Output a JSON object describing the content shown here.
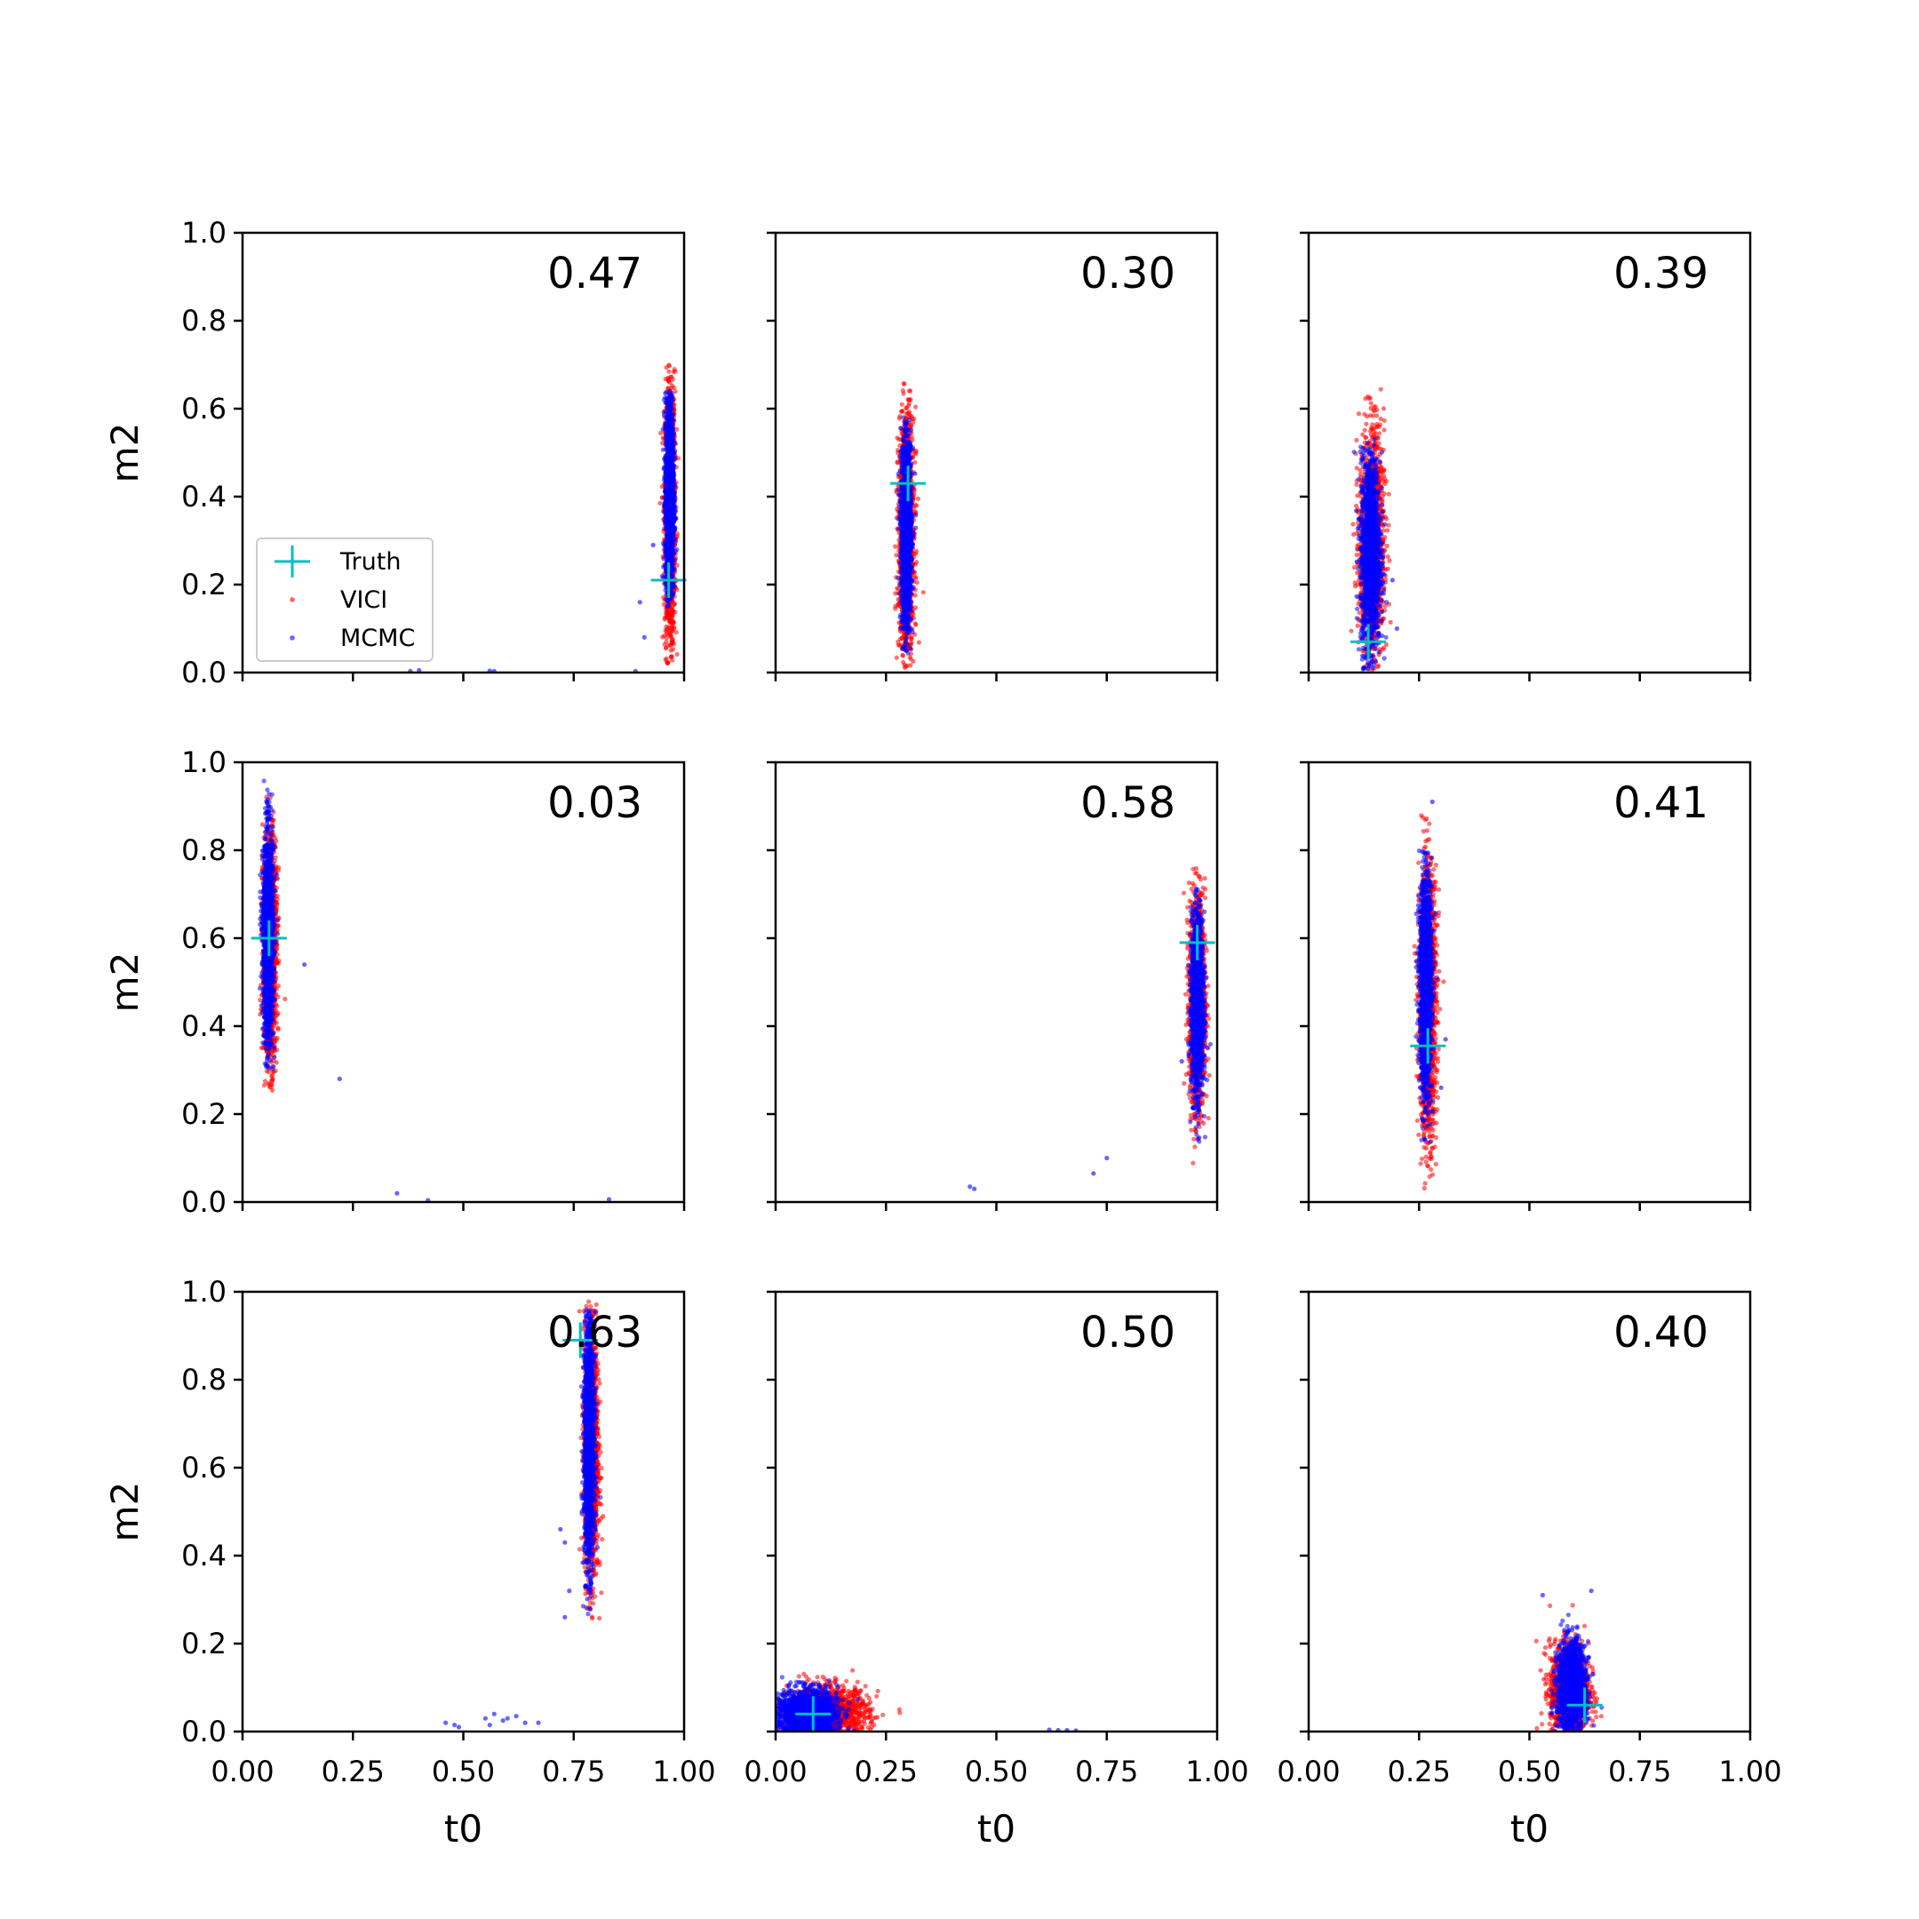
{
  "colors": {
    "truth": "#00bfbf",
    "vici": "#ff0000",
    "mcmc": "#0000ff",
    "axes": "#000000"
  },
  "legend": {
    "placement": "lower-left of first panel",
    "entries": [
      "Truth",
      "VICI",
      "MCMC"
    ]
  },
  "chart_data": [
    {
      "type": "scatter",
      "score": "0.47",
      "xlabel": "",
      "ylabel": "m2",
      "xlim": [
        0,
        1
      ],
      "ylim": [
        0,
        1
      ],
      "xticks": [
        "0.00",
        "0.25",
        "0.50",
        "0.75",
        "1.00"
      ],
      "yticks": [
        "0.0",
        "0.2",
        "0.4",
        "0.6",
        "0.8",
        "1.0"
      ],
      "show_xticklabels": false,
      "show_yticklabels": true,
      "truth": [
        0.965,
        0.21
      ],
      "vici": {
        "cx": 0.968,
        "cy": 0.36,
        "sx": 0.006,
        "sy": 0.16,
        "ymin": 0.02,
        "ymax": 0.7
      },
      "mcmc": {
        "cx": 0.967,
        "cy": 0.4,
        "sx": 0.005,
        "sy": 0.12,
        "ymin": 0.15,
        "ymax": 0.64
      },
      "outliers": [
        [
          0.93,
          0.29
        ],
        [
          0.9,
          0.16
        ],
        [
          0.91,
          0.08
        ],
        [
          0.4,
          0.005
        ],
        [
          0.38,
          0.003
        ],
        [
          0.57,
          0.003
        ],
        [
          0.56,
          0.004
        ],
        [
          0.89,
          0.003
        ]
      ],
      "legend": true
    },
    {
      "type": "scatter",
      "score": "0.30",
      "xlabel": "",
      "ylabel": "",
      "xlim": [
        0,
        1
      ],
      "ylim": [
        0,
        1
      ],
      "xticks": [
        "0.00",
        "0.25",
        "0.50",
        "0.75",
        "1.00"
      ],
      "yticks": [
        "0.0",
        "0.2",
        "0.4",
        "0.6",
        "0.8",
        "1.0"
      ],
      "show_xticklabels": false,
      "show_yticklabels": false,
      "truth": [
        0.3,
        0.43
      ],
      "vici": {
        "cx": 0.296,
        "cy": 0.31,
        "sx": 0.009,
        "sy": 0.14,
        "ymin": 0.01,
        "ymax": 0.66
      },
      "mcmc": {
        "cx": 0.296,
        "cy": 0.32,
        "sx": 0.006,
        "sy": 0.11,
        "ymin": 0.04,
        "ymax": 0.58
      },
      "outliers": [],
      "legend": false
    },
    {
      "type": "scatter",
      "score": "0.39",
      "xlabel": "",
      "ylabel": "",
      "xlim": [
        0,
        1
      ],
      "ylim": [
        0,
        1
      ],
      "xticks": [
        "0.00",
        "0.25",
        "0.50",
        "0.75",
        "1.00"
      ],
      "yticks": [
        "0.0",
        "0.2",
        "0.4",
        "0.6",
        "0.8",
        "1.0"
      ],
      "show_xticklabels": false,
      "show_yticklabels": false,
      "truth": [
        0.135,
        0.07
      ],
      "vici": {
        "cx": 0.143,
        "cy": 0.29,
        "sx": 0.014,
        "sy": 0.13,
        "ymin": 0.0,
        "ymax": 0.67
      },
      "mcmc": {
        "cx": 0.14,
        "cy": 0.27,
        "sx": 0.011,
        "sy": 0.11,
        "ymin": 0.0,
        "ymax": 0.53
      },
      "outliers": [
        [
          0.2,
          0.1
        ],
        [
          0.19,
          0.21
        ]
      ],
      "legend": false
    },
    {
      "type": "scatter",
      "score": "0.03",
      "xlabel": "",
      "ylabel": "m2",
      "xlim": [
        0,
        1
      ],
      "ylim": [
        0,
        1
      ],
      "xticks": [
        "0.00",
        "0.25",
        "0.50",
        "0.75",
        "1.00"
      ],
      "yticks": [
        "0.0",
        "0.2",
        "0.4",
        "0.6",
        "0.8",
        "1.0"
      ],
      "show_xticklabels": false,
      "show_yticklabels": true,
      "truth": [
        0.06,
        0.6
      ],
      "vici": {
        "cx": 0.062,
        "cy": 0.58,
        "sx": 0.008,
        "sy": 0.13,
        "ymin": 0.25,
        "ymax": 0.93
      },
      "mcmc": {
        "cx": 0.058,
        "cy": 0.6,
        "sx": 0.006,
        "sy": 0.12,
        "ymin": 0.3,
        "ymax": 0.96
      },
      "outliers": [
        [
          0.14,
          0.54
        ],
        [
          0.22,
          0.28
        ],
        [
          0.35,
          0.02
        ],
        [
          0.42,
          0.004
        ],
        [
          0.83,
          0.006
        ]
      ],
      "legend": false
    },
    {
      "type": "scatter",
      "score": "0.58",
      "xlabel": "",
      "ylabel": "",
      "xlim": [
        0,
        1
      ],
      "ylim": [
        0,
        1
      ],
      "xticks": [
        "0.00",
        "0.25",
        "0.50",
        "0.75",
        "1.00"
      ],
      "yticks": [
        "0.0",
        "0.2",
        "0.4",
        "0.6",
        "0.8",
        "1.0"
      ],
      "show_xticklabels": false,
      "show_yticklabels": false,
      "truth": [
        0.955,
        0.59
      ],
      "vici": {
        "cx": 0.955,
        "cy": 0.45,
        "sx": 0.009,
        "sy": 0.12,
        "ymin": 0.06,
        "ymax": 0.77
      },
      "mcmc": {
        "cx": 0.955,
        "cy": 0.45,
        "sx": 0.007,
        "sy": 0.1,
        "ymin": 0.13,
        "ymax": 0.72
      },
      "outliers": [
        [
          0.92,
          0.32
        ],
        [
          0.75,
          0.1
        ],
        [
          0.72,
          0.065
        ],
        [
          0.44,
          0.035
        ],
        [
          0.45,
          0.03
        ]
      ],
      "legend": false
    },
    {
      "type": "scatter",
      "score": "0.41",
      "xlabel": "",
      "ylabel": "",
      "xlim": [
        0,
        1
      ],
      "ylim": [
        0,
        1
      ],
      "xticks": [
        "0.00",
        "0.25",
        "0.50",
        "0.75",
        "1.00"
      ],
      "yticks": [
        "0.0",
        "0.2",
        "0.4",
        "0.6",
        "0.8",
        "1.0"
      ],
      "show_xticklabels": false,
      "show_yticklabels": false,
      "truth": [
        0.27,
        0.355
      ],
      "vici": {
        "cx": 0.27,
        "cy": 0.45,
        "sx": 0.01,
        "sy": 0.15,
        "ymin": 0.01,
        "ymax": 0.9
      },
      "mcmc": {
        "cx": 0.265,
        "cy": 0.5,
        "sx": 0.007,
        "sy": 0.13,
        "ymin": 0.13,
        "ymax": 0.8
      },
      "outliers": [
        [
          0.31,
          0.37
        ],
        [
          0.3,
          0.26
        ],
        [
          0.28,
          0.91
        ]
      ],
      "legend": false
    },
    {
      "type": "scatter",
      "score": "0.63",
      "xlabel": "t0",
      "ylabel": "m2",
      "xlim": [
        0,
        1
      ],
      "ylim": [
        0,
        1
      ],
      "xticks": [
        "0.00",
        "0.25",
        "0.50",
        "0.75",
        "1.00"
      ],
      "yticks": [
        "0.0",
        "0.2",
        "0.4",
        "0.6",
        "0.8",
        "1.0"
      ],
      "show_xticklabels": true,
      "show_yticklabels": true,
      "truth": [
        0.765,
        0.89
      ],
      "vici": {
        "cx": 0.79,
        "cy": 0.64,
        "sx": 0.008,
        "sy": 0.15,
        "ymin": 0.25,
        "ymax": 0.98
      },
      "mcmc": {
        "cx": 0.785,
        "cy": 0.66,
        "sx": 0.006,
        "sy": 0.14,
        "ymin": 0.26,
        "ymax": 0.96
      },
      "outliers": [
        [
          0.72,
          0.46
        ],
        [
          0.73,
          0.43
        ],
        [
          0.74,
          0.32
        ],
        [
          0.73,
          0.26
        ],
        [
          0.46,
          0.02
        ],
        [
          0.48,
          0.015
        ],
        [
          0.49,
          0.01
        ],
        [
          0.55,
          0.03
        ],
        [
          0.57,
          0.04
        ],
        [
          0.59,
          0.025
        ],
        [
          0.6,
          0.03
        ],
        [
          0.62,
          0.035
        ],
        [
          0.64,
          0.02
        ],
        [
          0.67,
          0.02
        ],
        [
          0.56,
          0.015
        ]
      ],
      "legend": false
    },
    {
      "type": "scatter",
      "score": "0.50",
      "xlabel": "t0",
      "ylabel": "",
      "xlim": [
        0,
        1
      ],
      "ylim": [
        0,
        1
      ],
      "xticks": [
        "0.00",
        "0.25",
        "0.50",
        "0.75",
        "1.00"
      ],
      "yticks": [
        "0.0",
        "0.2",
        "0.4",
        "0.6",
        "0.8",
        "1.0"
      ],
      "show_xticklabels": true,
      "show_yticklabels": false,
      "truth": [
        0.085,
        0.04
      ],
      "vici": {
        "cx": 0.12,
        "cy": 0.04,
        "sx": 0.045,
        "sy": 0.03,
        "ymin": 0.0,
        "ymax": 0.14
      },
      "mcmc": {
        "cx": 0.07,
        "cy": 0.04,
        "sx": 0.035,
        "sy": 0.028,
        "ymin": 0.0,
        "ymax": 0.13
      },
      "outliers": [
        [
          0.62,
          0.004
        ],
        [
          0.64,
          0.003
        ],
        [
          0.66,
          0.003
        ],
        [
          0.68,
          0.002
        ]
      ],
      "legend": false
    },
    {
      "type": "scatter",
      "score": "0.40",
      "xlabel": "t0",
      "ylabel": "",
      "xlim": [
        0,
        1
      ],
      "ylim": [
        0,
        1
      ],
      "xticks": [
        "0.00",
        "0.25",
        "0.50",
        "0.75",
        "1.00"
      ],
      "yticks": [
        "0.0",
        "0.2",
        "0.4",
        "0.6",
        "0.8",
        "1.0"
      ],
      "show_xticklabels": true,
      "show_yticklabels": false,
      "truth": [
        0.625,
        0.06
      ],
      "vici": {
        "cx": 0.59,
        "cy": 0.09,
        "sx": 0.022,
        "sy": 0.055,
        "ymin": 0.0,
        "ymax": 0.32
      },
      "mcmc": {
        "cx": 0.595,
        "cy": 0.1,
        "sx": 0.016,
        "sy": 0.05,
        "ymin": 0.0,
        "ymax": 0.32
      },
      "outliers": [
        [
          0.53,
          0.31
        ],
        [
          0.64,
          0.32
        ]
      ],
      "legend": false
    }
  ]
}
